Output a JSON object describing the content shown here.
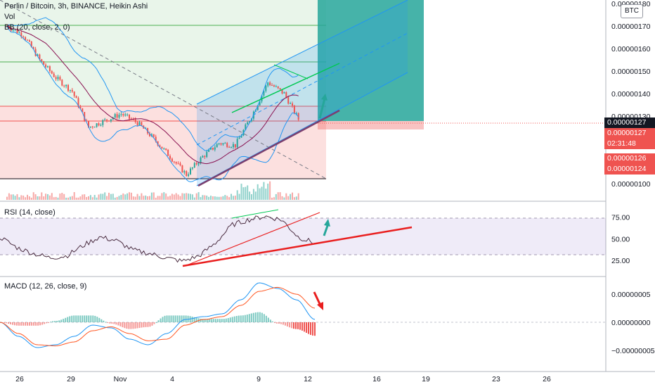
{
  "main_pane": {
    "legend": {
      "symbol": "Perlin / Bitcoin, 3h, BINANCE, Heikin Ashi",
      "volume": "Vol",
      "bb": "BB (20, close, 2, 0)"
    },
    "currency": "BTC",
    "price_axis": [
      "0.00000180",
      "0.00000170",
      "0.00000160",
      "0.00000150",
      "0.00000140",
      "0.00000130",
      "0.00000100"
    ],
    "tags": [
      {
        "text": "0.00000127",
        "color": "#131722"
      },
      {
        "text": "0.00000127",
        "color": "#ef5350"
      },
      {
        "text": "02:31:48",
        "color": "#ef5350"
      },
      {
        "text": "0.00000126",
        "color": "#ef5350"
      },
      {
        "text": "0.00000124",
        "color": "#ef5350"
      }
    ]
  },
  "rsi_pane": {
    "legend": "RSI (14, close)",
    "axis": [
      "75.00",
      "50.00",
      "25.00"
    ]
  },
  "macd_pane": {
    "legend": "MACD (12, 26, close, 9)",
    "axis": [
      "0.00000005",
      "0.00000000",
      "−0.00000005"
    ]
  },
  "time_axis": [
    "26",
    "29",
    "Nov",
    "4",
    "9",
    "12",
    "16",
    "19",
    "23",
    "26"
  ],
  "colors": {
    "up": "#26a69a",
    "down": "#ef5350",
    "bb_band": "#2196f3",
    "bb_basis": "#880e4f",
    "macd": "#2196f3",
    "signal": "#ff5722",
    "rsi": "#7e57c2",
    "trend_red": "#e91e1e",
    "trend_green": "#089981"
  },
  "chart_data": [
    {
      "type": "candlestick",
      "pane": "price",
      "unit": "BTC",
      "ylim": [
        9.5e-07,
        1.81e-06
      ],
      "xlim": [
        "Oct 25",
        "Nov 28"
      ],
      "close_path": [
        [
          "Oct 25",
          1.7e-06
        ],
        [
          "Oct 26",
          1.66e-06
        ],
        [
          "Oct 27",
          1.55e-06
        ],
        [
          "Oct 28",
          1.47e-06
        ],
        [
          "Oct 29",
          1.41e-06
        ],
        [
          "Oct 30",
          1.25e-06
        ],
        [
          "Oct 31",
          1.28e-06
        ],
        [
          "Nov 1",
          1.31e-06
        ],
        [
          "Nov 2",
          1.27e-06
        ],
        [
          "Nov 3",
          1.2e-06
        ],
        [
          "Nov 4",
          1.12e-06
        ],
        [
          "Nov 5",
          1.04e-06
        ],
        [
          "Nov 6",
          1.12e-06
        ],
        [
          "Nov 7",
          1.18e-06
        ],
        [
          "Nov 8",
          1.17e-06
        ],
        [
          "Nov 9",
          1.3e-06
        ],
        [
          "Nov 10",
          1.45e-06
        ],
        [
          "Nov 11",
          1.4e-06
        ],
        [
          "Nov 12",
          1.27e-06
        ]
      ],
      "last_price": 1.27e-06
    },
    {
      "type": "line",
      "pane": "rsi",
      "ylim": [
        0,
        100
      ],
      "bands": [
        30,
        70
      ],
      "series": [
        {
          "values": [
            52,
            40,
            33,
            28,
            30,
            42,
            52,
            48,
            37,
            33,
            28,
            24,
            30,
            45,
            66,
            72,
            76,
            72,
            52,
            45
          ]
        }
      ]
    },
    {
      "type": "line",
      "pane": "macd",
      "ylim": [
        -8e-08,
        8e-08
      ],
      "series": [
        {
          "values": [
            0.0,
            -2.5e-08,
            -4.5e-08,
            -4e-08,
            -2.5e-08,
            -5e-09,
            -1e-08,
            -3e-08,
            -4e-08,
            -2e-08,
            5e-09,
            1e-08,
            1.5e-08,
            4e-08,
            7e-08,
            6e-08,
            4e-08,
            5e-09
          ]
        },
        {
          "values": [
            0.0,
            -2e-08,
            -4e-08,
            -4.2e-08,
            -3.5e-08,
            -1.5e-08,
            -8e-09,
            -2e-08,
            -3.3e-08,
            -3e-08,
            -5e-09,
            5e-09,
            1e-08,
            3e-08,
            5.5e-08,
            6.2e-08,
            5e-08,
            2.5e-08
          ]
        }
      ]
    }
  ]
}
